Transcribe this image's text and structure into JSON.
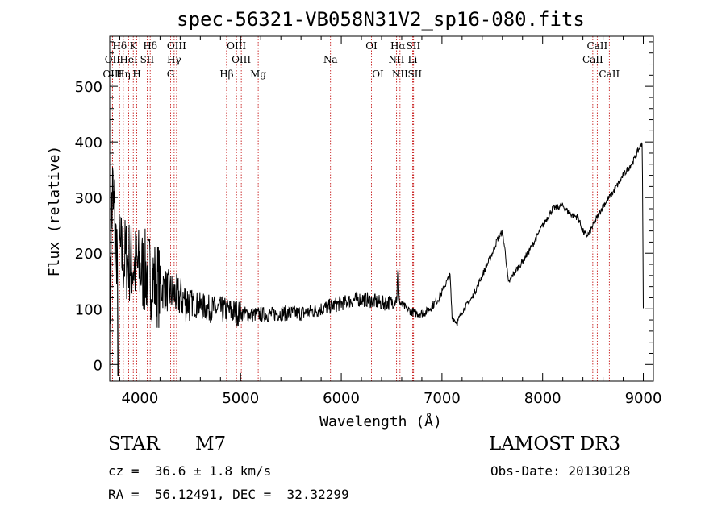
{
  "chart_data": {
    "type": "line",
    "title": "spec-56321-VB058N31V2_sp16-080.fits",
    "xlabel": "Wavelength (Å)",
    "ylabel": "Flux (relative)",
    "xlim": [
      3700,
      9100
    ],
    "ylim": [
      -30,
      590
    ],
    "xticks": [
      4000,
      5000,
      6000,
      7000,
      8000,
      9000
    ],
    "yticks": [
      0,
      100,
      200,
      300,
      400,
      500
    ],
    "colors": {
      "spectrum": "#000000",
      "lines": "#c00000"
    },
    "spectrum_anchor_points": {
      "x": [
        3700,
        3720,
        3760,
        3800,
        3850,
        3900,
        3950,
        4000,
        4050,
        4100,
        4150,
        4200,
        4300,
        4400,
        4500,
        4600,
        4700,
        4800,
        4900,
        5000,
        5100,
        5200,
        5300,
        5400,
        5500,
        5600,
        5700,
        5800,
        5900,
        6000,
        6100,
        6200,
        6300,
        6400,
        6500,
        6550,
        6563,
        6580,
        6650,
        6700,
        6750,
        6800,
        6850,
        6900,
        6950,
        7000,
        7050,
        7080,
        7100,
        7150,
        7200,
        7300,
        7400,
        7500,
        7550,
        7600,
        7630,
        7660,
        7700,
        7800,
        7900,
        8000,
        8100,
        8200,
        8250,
        8300,
        8350,
        8400,
        8430,
        8460,
        8500,
        8600,
        8700,
        8800,
        8900,
        8950,
        8990,
        9000
      ],
      "y": [
        20,
        300,
        220,
        200,
        190,
        185,
        175,
        170,
        165,
        160,
        150,
        140,
        130,
        120,
        112,
        105,
        100,
        98,
        95,
        92,
        90,
        90,
        90,
        92,
        92,
        92,
        95,
        100,
        105,
        110,
        115,
        118,
        115,
        110,
        112,
        118,
        170,
        110,
        100,
        95,
        92,
        92,
        95,
        105,
        115,
        130,
        150,
        160,
        85,
        75,
        95,
        120,
        160,
        200,
        225,
        238,
        200,
        145,
        160,
        185,
        215,
        250,
        280,
        285,
        275,
        268,
        265,
        240,
        232,
        235,
        250,
        285,
        310,
        340,
        365,
        385,
        400,
        100
      ]
    },
    "spectral_lines": [
      {
        "label": "Hδ",
        "wavelength": 3798,
        "row": 0
      },
      {
        "label": "K",
        "wavelength": 3934,
        "row": 0
      },
      {
        "label": "Hδ",
        "wavelength": 4102,
        "row": 0
      },
      {
        "label": "OIII",
        "wavelength": 4364,
        "row": 0
      },
      {
        "label": "OIII",
        "wavelength": 4959,
        "row": 0
      },
      {
        "label": "OI",
        "wavelength": 6300,
        "row": 0
      },
      {
        "label": "Hα",
        "wavelength": 6563,
        "row": 0
      },
      {
        "label": "SII",
        "wavelength": 6716,
        "row": 0
      },
      {
        "label": "CaII",
        "wavelength": 8542,
        "row": 0
      },
      {
        "label": "OII",
        "wavelength": 3727,
        "row": 1
      },
      {
        "label": "HeI",
        "wavelength": 3889,
        "row": 1
      },
      {
        "label": "SII",
        "wavelength": 4072,
        "row": 1
      },
      {
        "label": "Hγ",
        "wavelength": 4340,
        "row": 1
      },
      {
        "label": "OIII",
        "wavelength": 5007,
        "row": 1
      },
      {
        "label": "Na",
        "wavelength": 5893,
        "row": 1
      },
      {
        "label": "NII",
        "wavelength": 6548,
        "row": 1
      },
      {
        "label": "Li",
        "wavelength": 6708,
        "row": 1
      },
      {
        "label": "CaII",
        "wavelength": 8498,
        "row": 1
      },
      {
        "label": "OIII",
        "wavelength": 3727,
        "row": 2
      },
      {
        "label": "Hη",
        "wavelength": 3835,
        "row": 2
      },
      {
        "label": "H",
        "wavelength": 3969,
        "row": 2
      },
      {
        "label": "G",
        "wavelength": 4305,
        "row": 2
      },
      {
        "label": "Hβ",
        "wavelength": 4861,
        "row": 2
      },
      {
        "label": "Mg",
        "wavelength": 5175,
        "row": 2
      },
      {
        "label": "OI",
        "wavelength": 6364,
        "row": 2
      },
      {
        "label": "NII",
        "wavelength": 6583,
        "row": 2
      },
      {
        "label": "SII",
        "wavelength": 6731,
        "row": 2
      },
      {
        "label": "CaII",
        "wavelength": 8662,
        "row": 2
      }
    ]
  },
  "info": {
    "class": "STAR",
    "subclass": "M7",
    "survey": "LAMOST DR3",
    "redshift": "cz =  36.6 ± 1.8 km/s",
    "obs_date": "Obs-Date: 20130128",
    "coords": "RA =  56.12491, DEC =  32.32299"
  }
}
